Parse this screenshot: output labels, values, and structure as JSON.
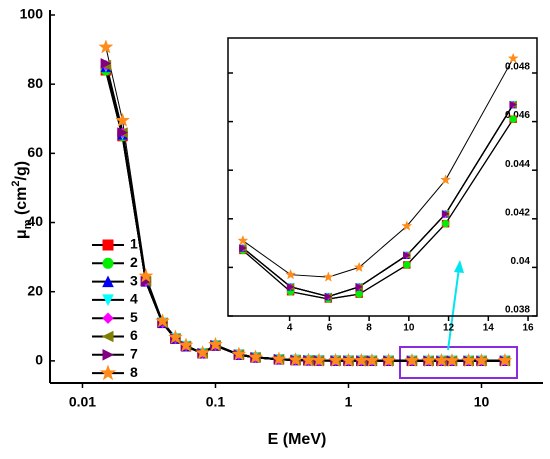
{
  "chart_data": [
    {
      "type": "line",
      "x_label": "E (MeV)",
      "y_label_parts": [
        "μ",
        "m",
        " (cm",
        "2",
        "/g)"
      ],
      "log_x": true,
      "xlim": [
        0.0057,
        29
      ],
      "ylim": [
        -6.4,
        100
      ],
      "xticks": [
        0.01,
        0.1,
        1,
        10
      ],
      "yticks": [
        0,
        20,
        40,
        60,
        80,
        100
      ],
      "x": [
        0.015,
        0.02,
        0.03,
        0.04,
        0.05,
        0.06,
        0.08,
        0.1,
        0.15,
        0.2,
        0.3,
        0.4,
        0.5,
        0.6,
        0.8,
        1,
        1.25,
        1.5,
        2,
        3,
        4,
        5,
        6,
        8,
        10,
        15
      ],
      "series": [
        {
          "name": "1",
          "color": "#ff0000",
          "marker": "square",
          "values": [
            84,
            65,
            23,
            11,
            6.4,
            4.2,
            2.2,
            4.4,
            1.8,
            1.0,
            0.45,
            0.25,
            0.15,
            0.1,
            0.08,
            0.07,
            0.06,
            0.055,
            0.05,
            0.045,
            0.039,
            0.0387,
            0.0389,
            0.0401,
            0.0418,
            0.0461
          ]
        },
        {
          "name": "2",
          "color": "#00ee00",
          "marker": "circle",
          "values": [
            84,
            65,
            23,
            11,
            6.4,
            4.2,
            2.2,
            4.4,
            1.8,
            1.0,
            0.45,
            0.25,
            0.15,
            0.1,
            0.08,
            0.07,
            0.06,
            0.055,
            0.05,
            0.045,
            0.039,
            0.0387,
            0.0389,
            0.0401,
            0.0418,
            0.0461
          ]
        },
        {
          "name": "3",
          "color": "#0000ff",
          "marker": "triangle-up",
          "values": [
            85,
            65.5,
            23,
            11,
            6.5,
            4.3,
            2.2,
            4.5,
            1.8,
            1.0,
            0.45,
            0.25,
            0.15,
            0.1,
            0.08,
            0.07,
            0.06,
            0.055,
            0.05,
            0.045,
            0.0392,
            0.0388,
            0.0392,
            0.0405,
            0.0422,
            0.0467
          ]
        },
        {
          "name": "4",
          "color": "#00ffff",
          "marker": "triangle-down",
          "values": [
            85,
            65.5,
            23,
            11,
            6.5,
            4.3,
            2.2,
            4.5,
            1.8,
            1.0,
            0.45,
            0.25,
            0.15,
            0.1,
            0.08,
            0.07,
            0.06,
            0.055,
            0.05,
            0.045,
            0.0392,
            0.0388,
            0.0392,
            0.0405,
            0.0422,
            0.0467
          ]
        },
        {
          "name": "5",
          "color": "#ff00ff",
          "marker": "diamond",
          "values": [
            85.5,
            66,
            23,
            11,
            6.5,
            4.3,
            2.2,
            4.5,
            1.8,
            1.0,
            0.45,
            0.25,
            0.15,
            0.1,
            0.08,
            0.07,
            0.06,
            0.055,
            0.05,
            0.045,
            0.0392,
            0.0388,
            0.0392,
            0.0405,
            0.0422,
            0.0467
          ]
        },
        {
          "name": "6",
          "color": "#808000",
          "marker": "triangle-left",
          "values": [
            85.5,
            66,
            23,
            11,
            6.5,
            4.3,
            2.2,
            4.5,
            1.8,
            1.0,
            0.45,
            0.25,
            0.15,
            0.1,
            0.08,
            0.07,
            0.06,
            0.055,
            0.05,
            0.045,
            0.0392,
            0.0388,
            0.0392,
            0.0405,
            0.0422,
            0.0467
          ]
        },
        {
          "name": "7",
          "color": "#800080",
          "marker": "triangle-right",
          "values": [
            86,
            66,
            23,
            11,
            6.5,
            4.3,
            2.2,
            4.5,
            1.8,
            1.0,
            0.45,
            0.25,
            0.15,
            0.1,
            0.08,
            0.07,
            0.06,
            0.055,
            0.05,
            0.045,
            0.0392,
            0.0388,
            0.0392,
            0.0405,
            0.0422,
            0.0467
          ]
        },
        {
          "name": "8",
          "color": "#ff8c1a",
          "marker": "star",
          "values": [
            90.7,
            69.5,
            24.5,
            11.5,
            6.8,
            4.5,
            2.3,
            4.7,
            1.9,
            1.05,
            0.47,
            0.26,
            0.16,
            0.11,
            0.085,
            0.075,
            0.065,
            0.058,
            0.052,
            0.047,
            0.0397,
            0.0396,
            0.04,
            0.0417,
            0.0436,
            0.0486
          ]
        }
      ]
    },
    {
      "type": "line",
      "xlim": [
        0.9,
        16.45
      ],
      "ylim": [
        0.038,
        0.04944
      ],
      "xticks": [
        4,
        6,
        8,
        10,
        12,
        14,
        16
      ],
      "yticks": [
        0.038,
        0.04,
        0.042,
        0.044,
        0.046,
        0.048
      ],
      "x": [
        1.65,
        4.05,
        5.95,
        7.5,
        9.9,
        11.85,
        15.25
      ],
      "series": [
        {
          "color": "#ff0000",
          "marker": "square",
          "values": [
            0.0407,
            0.039,
            0.0387,
            0.0389,
            0.0401,
            0.0418,
            0.0461
          ]
        },
        {
          "color": "#00ee00",
          "marker": "circle",
          "values": [
            0.0407,
            0.039,
            0.0387,
            0.0389,
            0.0401,
            0.0418,
            0.0461
          ]
        },
        {
          "color": "#0000ff",
          "marker": "triangle-up",
          "values": [
            0.0408,
            0.0392,
            0.0388,
            0.0392,
            0.0405,
            0.0422,
            0.0467
          ]
        },
        {
          "color": "#00ffff",
          "marker": "triangle-down",
          "values": [
            0.0408,
            0.0392,
            0.0388,
            0.0392,
            0.0405,
            0.0422,
            0.0467
          ]
        },
        {
          "color": "#ff00ff",
          "marker": "diamond",
          "values": [
            0.0408,
            0.0392,
            0.0388,
            0.0392,
            0.0405,
            0.0422,
            0.0467
          ]
        },
        {
          "color": "#808000",
          "marker": "triangle-left",
          "values": [
            0.0408,
            0.0392,
            0.0388,
            0.0392,
            0.0405,
            0.0422,
            0.0467
          ]
        },
        {
          "color": "#800080",
          "marker": "triangle-right",
          "values": [
            0.0408,
            0.0392,
            0.0388,
            0.0392,
            0.0405,
            0.0422,
            0.0467
          ]
        },
        {
          "color": "#ff8c1a",
          "marker": "star",
          "values": [
            0.0411,
            0.0397,
            0.0396,
            0.04,
            0.0417,
            0.0436,
            0.0486
          ]
        }
      ]
    }
  ]
}
